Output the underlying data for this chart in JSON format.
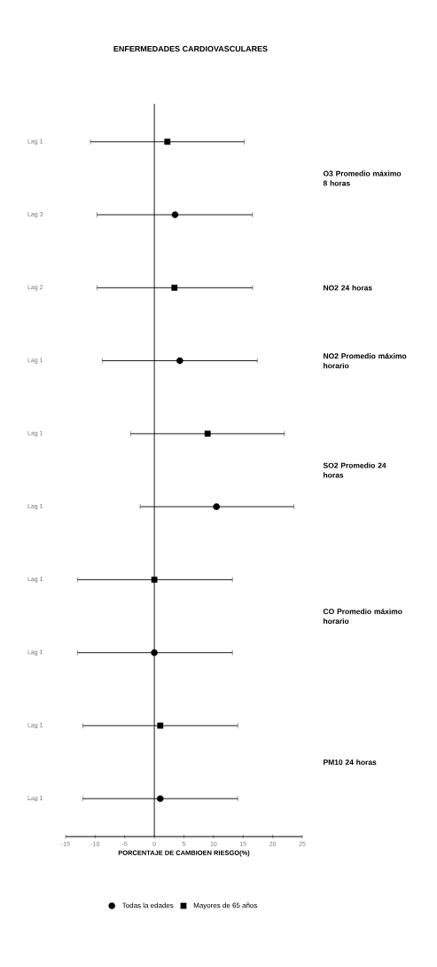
{
  "chart_data": {
    "type": "scatter",
    "orientation": "horizontal",
    "title": "ENFERMEDADES CARDIOVASCULARES",
    "xlabel": "PORCENTAJE DE CAMBIOEN RIESGO(%)",
    "categories": [
      "Lag 1",
      "Lag 3",
      "Lag 2",
      "Lag 1",
      "Lag 1",
      "Lag 1",
      "Lag 1",
      "Lag 1",
      "Lag 1",
      "Lag 1"
    ],
    "series": [
      {
        "name": "Todas la edades",
        "color": "#000000",
        "marker": "circle",
        "values": [
          null,
          3.5,
          null,
          4.3,
          null,
          10.5,
          null,
          0,
          null,
          1.0
        ],
        "errors": [
          null,
          [
            -9.7,
            16.6
          ],
          null,
          [
            -8.8,
            17.4
          ],
          null,
          [
            -2.4,
            23.6
          ],
          null,
          [
            -13.0,
            13.2
          ],
          null,
          [
            -12.1,
            14.1
          ]
        ]
      },
      {
        "name": "Mayores de 65 años",
        "color": "#000000",
        "marker": "square",
        "values": [
          2.2,
          null,
          3.4,
          null,
          9.0,
          null,
          0,
          null,
          1.0,
          null
        ],
        "errors": [
          [
            -10.8,
            15.2
          ],
          null,
          [
            -9.7,
            16.6
          ],
          null,
          [
            -4.0,
            22.0
          ],
          null,
          [
            -13.0,
            13.2
          ],
          null,
          [
            -12.1,
            14.1
          ],
          null
        ]
      }
    ],
    "xlim": [
      -15,
      25
    ],
    "xticks": [
      -15,
      -10,
      -5,
      0,
      5,
      10,
      15,
      20,
      25
    ],
    "ref_lines": [
      {
        "axis": "x",
        "value": 0
      }
    ],
    "annotations": [
      "O3 Promedio máximo 8 horas",
      "NO2 24 horas",
      "NO2 Promedio máximo horario",
      "SO2 Promedio 24 horas",
      "CO Promedio máximo horario",
      "PM10 24 horas"
    ],
    "legend": "bottom"
  }
}
